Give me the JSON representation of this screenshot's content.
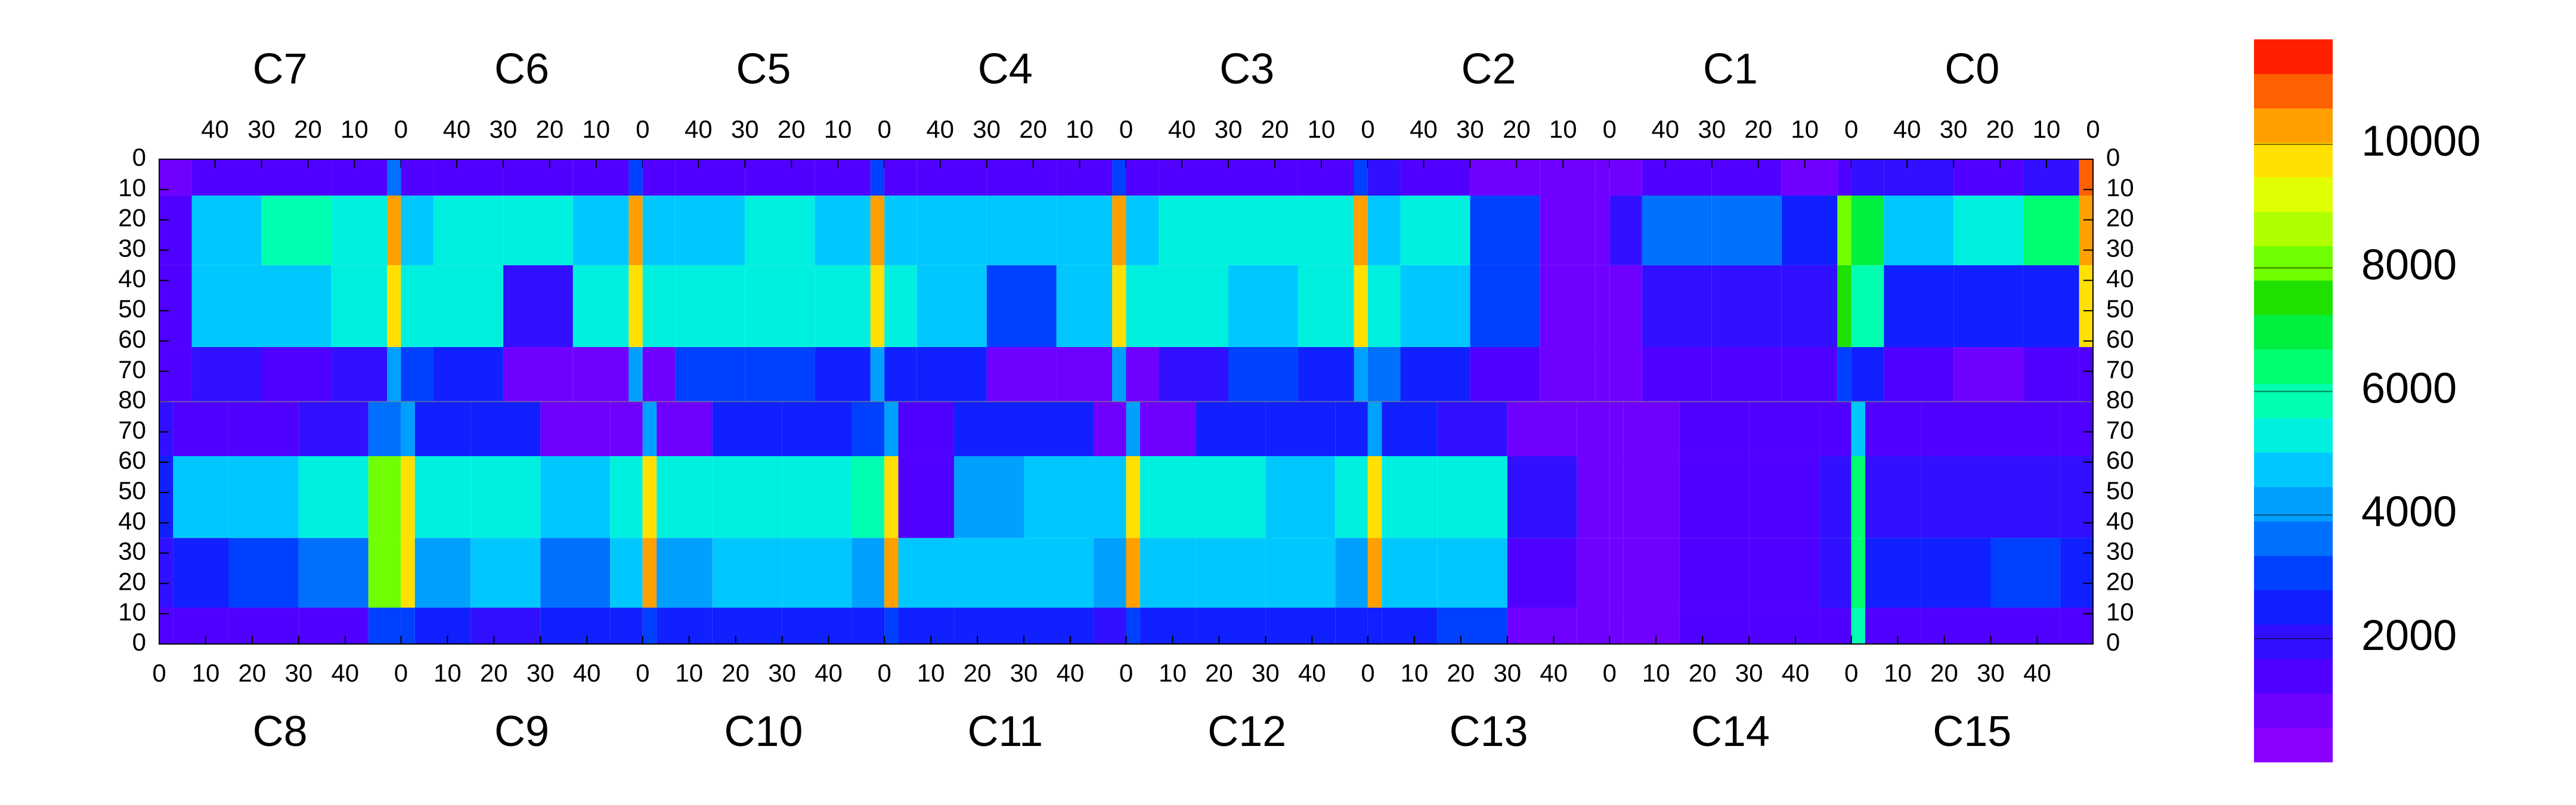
{
  "chart_data": {
    "type": "heatmap",
    "x_bins": [
      0,
      3,
      15,
      30,
      45,
      52
    ],
    "y_bins": [
      0,
      12,
      35,
      62,
      80
    ],
    "zlim": [
      0,
      11700
    ],
    "zticks": [
      2000,
      4000,
      6000,
      8000,
      10000
    ],
    "palette": [
      "#8a00ff",
      "#6f00ff",
      "#5000ff",
      "#3010ff",
      "#1020ff",
      "#0040ff",
      "#0070ff",
      "#00a0ff",
      "#00c8ff",
      "#00f0e0",
      "#00ffb0",
      "#00ff70",
      "#00f040",
      "#20e000",
      "#70ff00",
      "#b0ff00",
      "#e0ff00",
      "#ffe000",
      "#ffa000",
      "#ff6000",
      "#ff2000"
    ],
    "top": {
      "xlim": [
        52,
        0
      ],
      "xticks": [
        40,
        30,
        20,
        10,
        0
      ],
      "ylim": [
        0,
        80
      ],
      "yticks": [
        0,
        10,
        20,
        30,
        40,
        50,
        60,
        70,
        80
      ],
      "chips": [
        {
          "label": "C7",
          "z": [
            [
              3500,
              1500,
              1200,
              1200,
              900
            ],
            [
              10500,
              5500,
              6000,
              5000,
              1200
            ],
            [
              10000,
              5500,
              5000,
              4500,
              1500
            ],
            [
              4000,
              1800,
              1500,
              1800,
              1200
            ]
          ]
        },
        {
          "label": "C6",
          "z": [
            [
              3000,
              1500,
              1500,
              1500,
              1500
            ],
            [
              10500,
              5000,
              5500,
              5500,
              5000
            ],
            [
              10000,
              5500,
              2000,
              5500,
              5500
            ],
            [
              4000,
              800,
              800,
              2500,
              3000
            ]
          ]
        },
        {
          "label": "C5",
          "z": [
            [
              3000,
              1500,
              1500,
              1500,
              1500
            ],
            [
              10500,
              5000,
              5500,
              5000,
              5000
            ],
            [
              10000,
              5500,
              5500,
              5500,
              5500
            ],
            [
              4000,
              2500,
              3000,
              3000,
              800
            ]
          ]
        },
        {
          "label": "C4",
          "z": [
            [
              3000,
              1500,
              1500,
              1500,
              1500
            ],
            [
              10500,
              5000,
              4500,
              5000,
              5000
            ],
            [
              9500,
              4500,
              3000,
              4500,
              5500
            ],
            [
              4000,
              800,
              800,
              2500,
              2500
            ]
          ]
        },
        {
          "label": "C3",
          "z": [
            [
              3000,
              1500,
              1500,
              1500,
              1500
            ],
            [
              10500,
              5500,
              5500,
              5500,
              5000
            ],
            [
              10000,
              5500,
              5000,
              5500,
              5500
            ],
            [
              4000,
              2500,
              3000,
              2000,
              1000
            ]
          ]
        },
        {
          "label": "C2",
          "z": [
            [
              1000,
              1000,
              1000,
              1500,
              2000
            ],
            [
              800,
              900,
              3000,
              5500,
              5000
            ],
            [
              800,
              900,
              3000,
              5000,
              5500
            ],
            [
              700,
              800,
              1500,
              2500,
              3500
            ]
          ]
        },
        {
          "label": "C1",
          "z": [
            [
              1500,
              1000,
              1500,
              1500,
              800
            ],
            [
              8000,
              2500,
              3500,
              3500,
              2000
            ],
            [
              7500,
              2000,
              2000,
              2000,
              1000
            ],
            [
              3000,
              1500,
              1200,
              1500,
              800
            ]
          ]
        },
        {
          "label": "C0",
          "z": [
            [
              11000,
              2000,
              1500,
              2000,
              2000
            ],
            [
              10500,
              6500,
              5500,
              4500,
              7000
            ],
            [
              10000,
              2500,
              2500,
              2500,
              6000
            ],
            [
              1500,
              1500,
              1000,
              1200,
              2500
            ]
          ]
        }
      ]
    },
    "bottom": {
      "xlim": [
        0,
        52
      ],
      "xticks": [
        0,
        10,
        20,
        30,
        40
      ],
      "ylim": [
        0,
        80
      ],
      "yticks": [
        70,
        60,
        50,
        40,
        30,
        20,
        10,
        0
      ],
      "chips": [
        {
          "label": "C8",
          "z": [
            [
              1500,
              1200,
              1200,
              1500,
              3000
            ],
            [
              2000,
              2500,
              3000,
              3500,
              8000
            ],
            [
              2500,
              5000,
              5000,
              5500,
              8000
            ],
            [
              1800,
              1500,
              1500,
              2000,
              3500
            ]
          ]
        },
        {
          "label": "C9",
          "z": [
            [
              3000,
              2500,
              2000,
              2500,
              2500
            ],
            [
              10000,
              4000,
              4500,
              3500,
              4500
            ],
            [
              10000,
              5500,
              5500,
              5000,
              5500
            ],
            [
              4000,
              2500,
              2500,
              800,
              800
            ]
          ]
        },
        {
          "label": "C10",
          "z": [
            [
              3000,
              2500,
              2500,
              2500,
              2500
            ],
            [
              10500,
              4000,
              4500,
              4500,
              4000
            ],
            [
              10000,
              5500,
              5500,
              5500,
              6000
            ],
            [
              4000,
              800,
              2500,
              2500,
              3000
            ]
          ]
        },
        {
          "label": "C11",
          "z": [
            [
              3000,
              2500,
              2500,
              2500,
              2000
            ],
            [
              10500,
              4500,
              4500,
              4500,
              4000
            ],
            [
              10000,
              1500,
              4000,
              5000,
              5000
            ],
            [
              4000,
              1200,
              2500,
              2500,
              800
            ]
          ]
        },
        {
          "label": "C12",
          "z": [
            [
              3000,
              2500,
              2500,
              2500,
              2500
            ],
            [
              10500,
              4500,
              4500,
              4500,
              4000
            ],
            [
              10000,
              5500,
              5500,
              5000,
              5500
            ],
            [
              4000,
              800,
              2500,
              2500,
              2500
            ]
          ]
        },
        {
          "label": "C13",
          "z": [
            [
              2500,
              2500,
              3000,
              1000,
              800
            ],
            [
              10500,
              4500,
              4500,
              1500,
              800
            ],
            [
              10000,
              5500,
              5500,
              2000,
              800
            ],
            [
              4000,
              2500,
              2000,
              1000,
              800
            ]
          ]
        },
        {
          "label": "C14",
          "z": [
            [
              800,
              800,
              1200,
              1500,
              1500
            ],
            [
              800,
              800,
              1500,
              1500,
              1800
            ],
            [
              800,
              900,
              1500,
              1500,
              1800
            ],
            [
              700,
              800,
              1200,
              1200,
              1500
            ]
          ]
        },
        {
          "label": "C15",
          "z": [
            [
              6000,
              1500,
              1500,
              1500,
              1200
            ],
            [
              6500,
              2500,
              2500,
              3000,
              2500
            ],
            [
              6500,
              2000,
              2000,
              2000,
              2000
            ],
            [
              5000,
              1500,
              1500,
              1500,
              1500
            ]
          ]
        }
      ]
    }
  }
}
